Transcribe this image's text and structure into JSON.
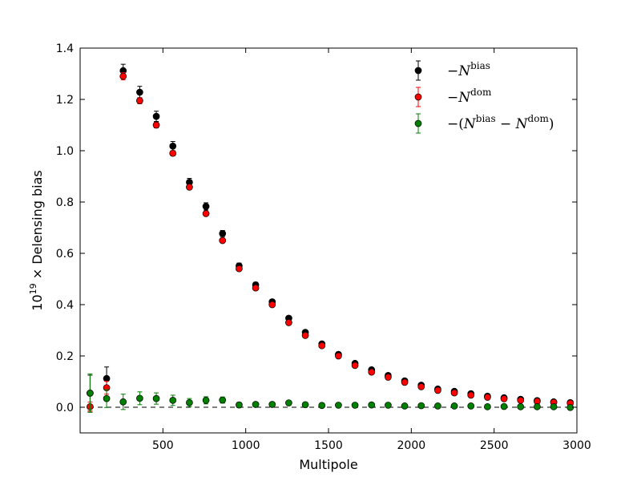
{
  "chart_data": {
    "type": "scatter",
    "title": "",
    "xlabel": "Multipole",
    "ylabel_prefix": "10",
    "ylabel_exponent": "19",
    "ylabel_rest": " × Delensing bias",
    "xlim": [
      0,
      3000
    ],
    "ylim": [
      -0.1,
      1.4
    ],
    "xticks": [
      500,
      1000,
      1500,
      2000,
      2500,
      3000
    ],
    "xtick_labels": [
      "500",
      "1000",
      "1500",
      "2000",
      "2500",
      "3000"
    ],
    "yticks": [
      0.0,
      0.2,
      0.4,
      0.6,
      0.8,
      1.0,
      1.2,
      1.4
    ],
    "ytick_labels": [
      "0.0",
      "0.2",
      "0.4",
      "0.6",
      "0.8",
      "1.0",
      "1.2",
      "1.4"
    ],
    "grid": false,
    "reference_line": {
      "y": 0,
      "style": "dashed",
      "color": "#000000"
    },
    "legend": {
      "placement": "top-right",
      "entries": [
        {
          "prefix": "−",
          "base": "N",
          "sup": "bias",
          "suffix": "",
          "color": "#000000"
        },
        {
          "prefix": "−",
          "base": "N",
          "sup": "dom",
          "suffix": "",
          "color": "#ff0000"
        },
        {
          "prefix": "−(",
          "base": "N",
          "sup": "bias",
          "mid": " − ",
          "base2": "N",
          "sup2": "dom",
          "suffix": ")",
          "color": "#008000"
        }
      ]
    },
    "x": [
      60,
      160,
      260,
      360,
      460,
      560,
      660,
      760,
      860,
      960,
      1060,
      1160,
      1260,
      1360,
      1460,
      1560,
      1660,
      1760,
      1860,
      1960,
      2060,
      2160,
      2260,
      2360,
      2460,
      2560,
      2660,
      2760,
      2860,
      2960
    ],
    "series": [
      {
        "name": "−N^bias",
        "color": "#000000",
        "values": [
          0.055,
          0.112,
          1.312,
          1.228,
          1.134,
          1.018,
          0.877,
          0.783,
          0.677,
          0.551,
          0.477,
          0.411,
          0.347,
          0.292,
          0.247,
          0.206,
          0.171,
          0.146,
          0.124,
          0.103,
          0.086,
          0.071,
          0.062,
          0.053,
          0.043,
          0.037,
          0.031,
          0.026,
          0.021,
          0.018
        ],
        "errors": [
          0.07,
          0.045,
          0.025,
          0.023,
          0.02,
          0.018,
          0.015,
          0.014,
          0.012,
          0.011,
          0.01,
          0.009,
          0.008,
          0.007,
          0.007,
          0.006,
          0.006,
          0.005,
          0.005,
          0.005,
          0.004,
          0.004,
          0.004,
          0.004,
          0.004,
          0.004,
          0.003,
          0.003,
          0.003,
          0.003
        ]
      },
      {
        "name": "−N^dom",
        "color": "#ff0000",
        "values": [
          0.002,
          0.076,
          1.29,
          1.195,
          1.1,
          0.99,
          0.858,
          0.755,
          0.65,
          0.54,
          0.465,
          0.4,
          0.33,
          0.28,
          0.24,
          0.2,
          0.163,
          0.137,
          0.117,
          0.097,
          0.08,
          0.066,
          0.056,
          0.047,
          0.039,
          0.033,
          0.027,
          0.023,
          0.019,
          0.016
        ],
        "errors": [
          0.018,
          0.025,
          0.014,
          0.012,
          0.011,
          0.01,
          0.009,
          0.008,
          0.007,
          0.006,
          0.006,
          0.005,
          0.005,
          0.004,
          0.004,
          0.004,
          0.004,
          0.003,
          0.003,
          0.003,
          0.003,
          0.003,
          0.003,
          0.003,
          0.003,
          0.003,
          0.003,
          0.002,
          0.002,
          0.002
        ]
      },
      {
        "name": "−(N^bias − N^dom)",
        "color": "#008000",
        "values": [
          0.055,
          0.034,
          0.021,
          0.035,
          0.034,
          0.027,
          0.018,
          0.027,
          0.028,
          0.009,
          0.011,
          0.011,
          0.017,
          0.01,
          0.007,
          0.008,
          0.008,
          0.009,
          0.008,
          0.005,
          0.006,
          0.005,
          0.005,
          0.005,
          0.002,
          0.003,
          0.002,
          0.002,
          0.002,
          -0.001
        ],
        "errors": [
          0.075,
          0.035,
          0.03,
          0.025,
          0.022,
          0.02,
          0.016,
          0.014,
          0.012,
          0.01,
          0.009,
          0.008,
          0.007,
          0.006,
          0.005,
          0.005,
          0.005,
          0.004,
          0.004,
          0.004,
          0.003,
          0.003,
          0.003,
          0.003,
          0.003,
          0.003,
          0.003,
          0.002,
          0.002,
          0.002
        ]
      }
    ]
  }
}
